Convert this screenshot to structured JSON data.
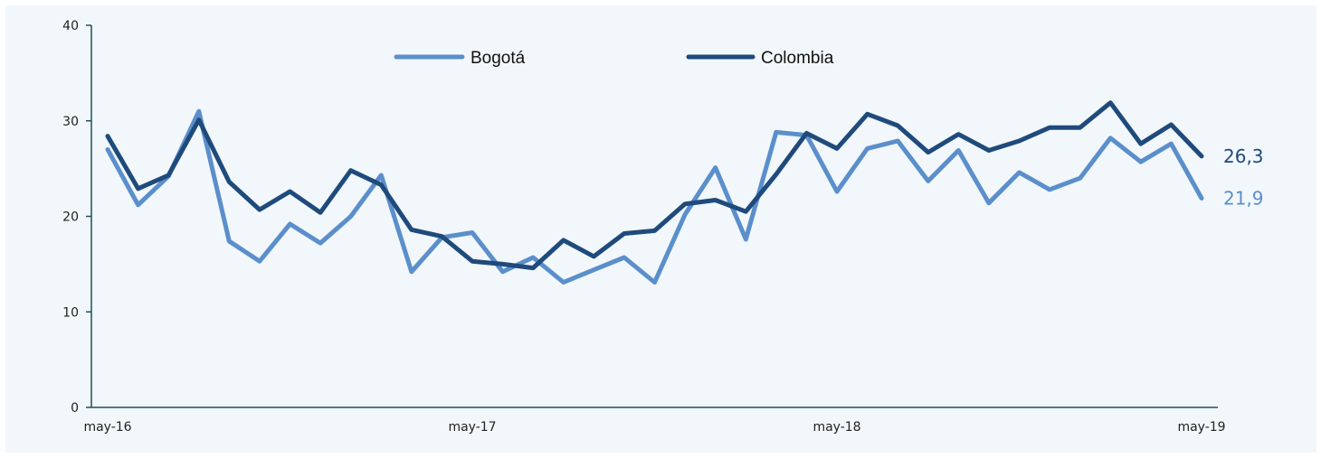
{
  "chart_data": {
    "type": "line",
    "title": "",
    "xlabel": "",
    "ylabel": "",
    "ylim": [
      0,
      40
    ],
    "yticks": [
      "0",
      "10",
      "20",
      "30",
      "40"
    ],
    "xticks": [
      {
        "label": "may-16",
        "index": 0
      },
      {
        "label": "may-17",
        "index": 12
      },
      {
        "label": "may-18",
        "index": 24
      },
      {
        "label": "may-19",
        "index": 36
      }
    ],
    "grid": false,
    "legend_position": "top-center",
    "series": [
      {
        "name": "Bogotá",
        "color": "#5b8fcb",
        "end_label": "21,9",
        "values": [
          27.0,
          21.2,
          24.2,
          31.0,
          17.4,
          15.3,
          19.2,
          17.2,
          20.0,
          24.3,
          14.2,
          17.8,
          18.3,
          14.2,
          15.7,
          13.1,
          14.4,
          15.7,
          13.1,
          20.2,
          25.1,
          17.6,
          28.8,
          28.5,
          22.6,
          27.1,
          27.9,
          23.7,
          26.9,
          21.4,
          24.6,
          22.8,
          24.0,
          28.2,
          25.7,
          27.6,
          21.9
        ]
      },
      {
        "name": "Colombia",
        "color": "#1f4a7c",
        "end_label": "26,3",
        "values": [
          28.4,
          22.9,
          24.3,
          30.1,
          23.6,
          20.7,
          22.6,
          20.4,
          24.8,
          23.3,
          18.6,
          17.9,
          15.3,
          15.0,
          14.6,
          17.5,
          15.8,
          18.2,
          18.5,
          21.3,
          21.7,
          20.5,
          24.4,
          28.7,
          27.1,
          30.7,
          29.5,
          26.7,
          28.6,
          26.9,
          27.9,
          29.3,
          29.3,
          31.9,
          27.6,
          29.6,
          26.3
        ]
      }
    ]
  }
}
